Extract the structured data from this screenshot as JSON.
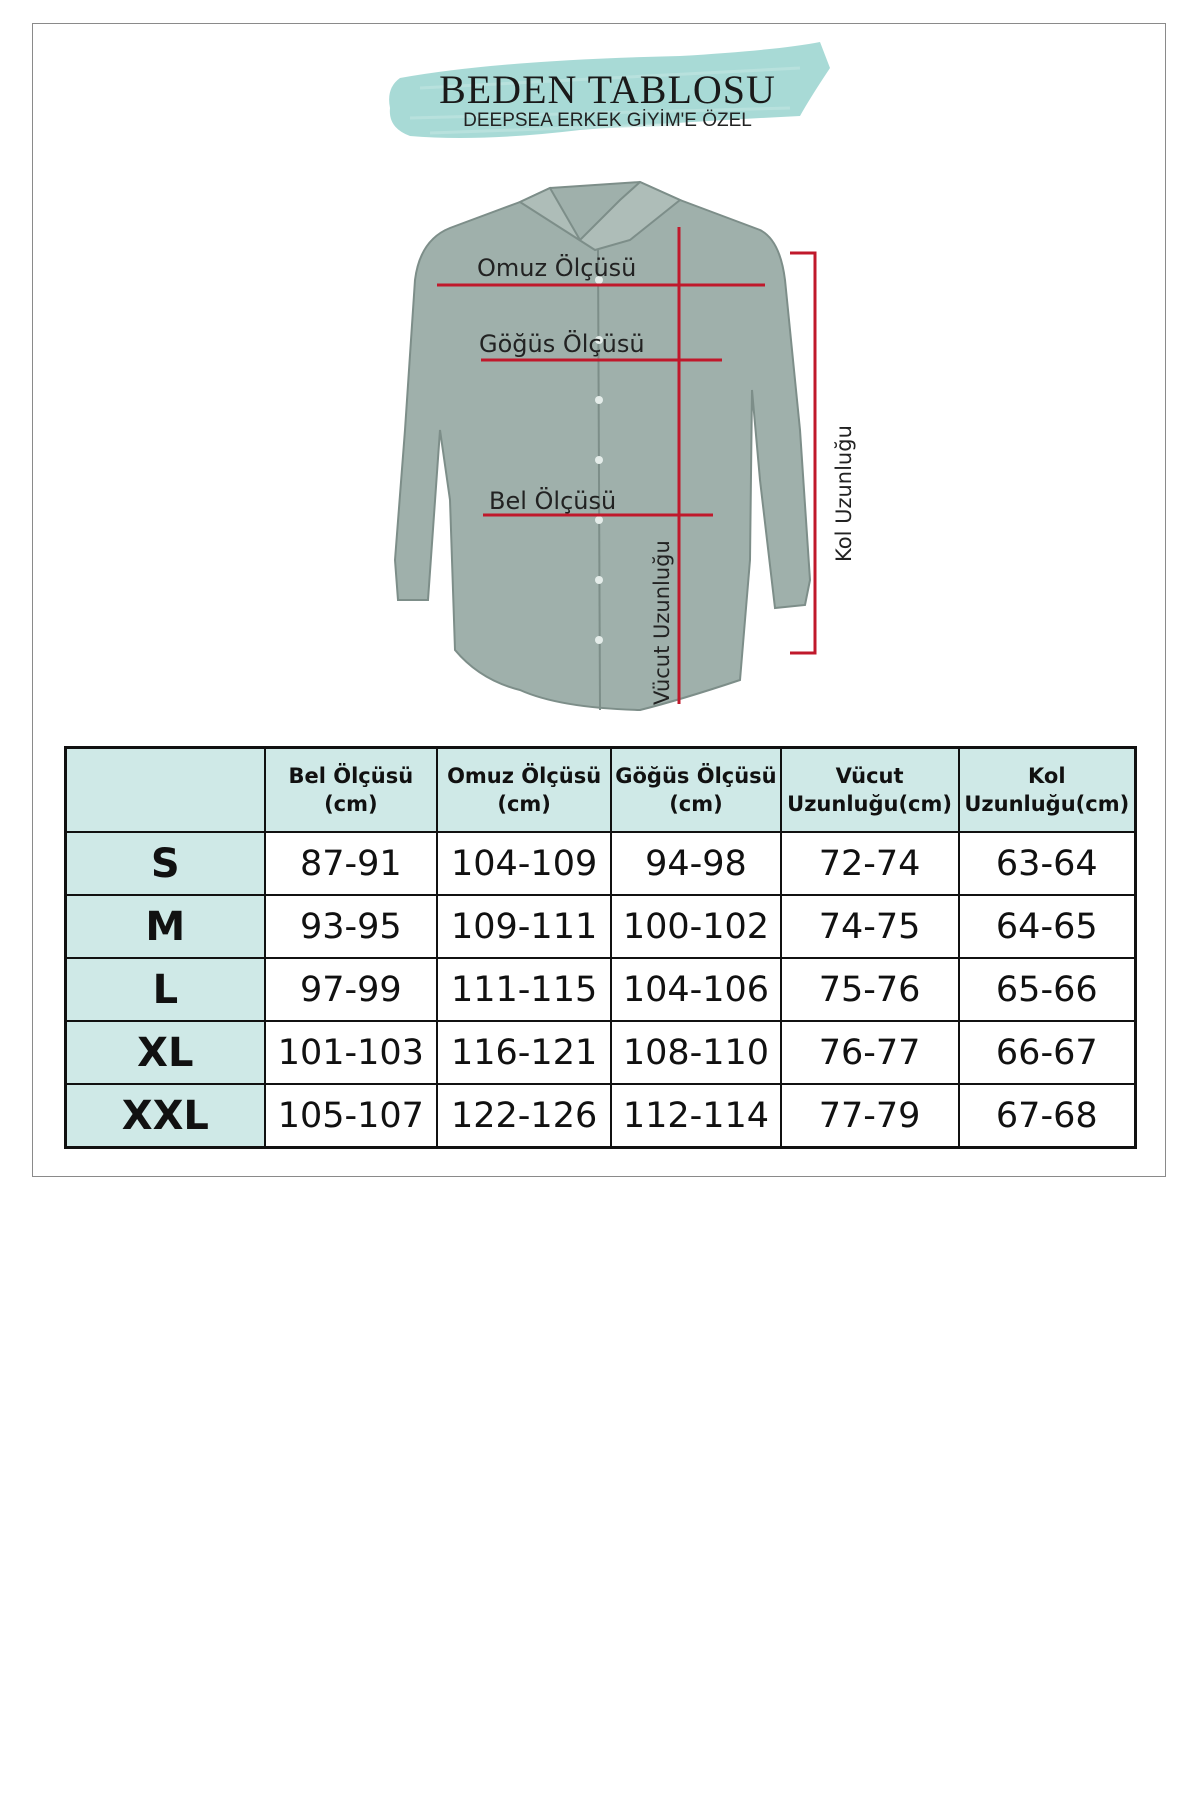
{
  "header": {
    "title": "BEDEN TABLOSU",
    "subtitle": "DEEPSEA ERKEK GİYİM'E ÖZEL",
    "brush_color": "#9fd6d1"
  },
  "diagram": {
    "labels": {
      "shoulder": "Omuz Ölçüsü",
      "chest": "Göğüs Ölçüsü",
      "waist": "Bel Ölçüsü",
      "body_length": "Vücut Uzunluğu",
      "sleeve_length": "Kol Uzunluğu"
    },
    "line_color": "#c0182b",
    "shirt_color": "#9fb0ab"
  },
  "table": {
    "headers": [
      "",
      "Bel Ölçüsü\n(cm)",
      "Omuz Ölçüsü\n(cm)",
      "Göğüs Ölçüsü\n(cm)",
      "Vücut\nUzunluğu(cm)",
      "Kol\nUzunluğu(cm)"
    ],
    "rows": [
      [
        "S",
        "87-91",
        "104-109",
        "94-98",
        "72-74",
        "63-64"
      ],
      [
        "M",
        "93-95",
        "109-111",
        "100-102",
        "74-75",
        "64-65"
      ],
      [
        "L",
        "97-99",
        "111-115",
        "104-106",
        "75-76",
        "65-66"
      ],
      [
        "XL",
        "101-103",
        "116-121",
        "108-110",
        "76-77",
        "66-67"
      ],
      [
        "XXL",
        "105-107",
        "122-126",
        "112-114",
        "77-79",
        "67-68"
      ]
    ],
    "header_color": "#cfe9e7"
  }
}
